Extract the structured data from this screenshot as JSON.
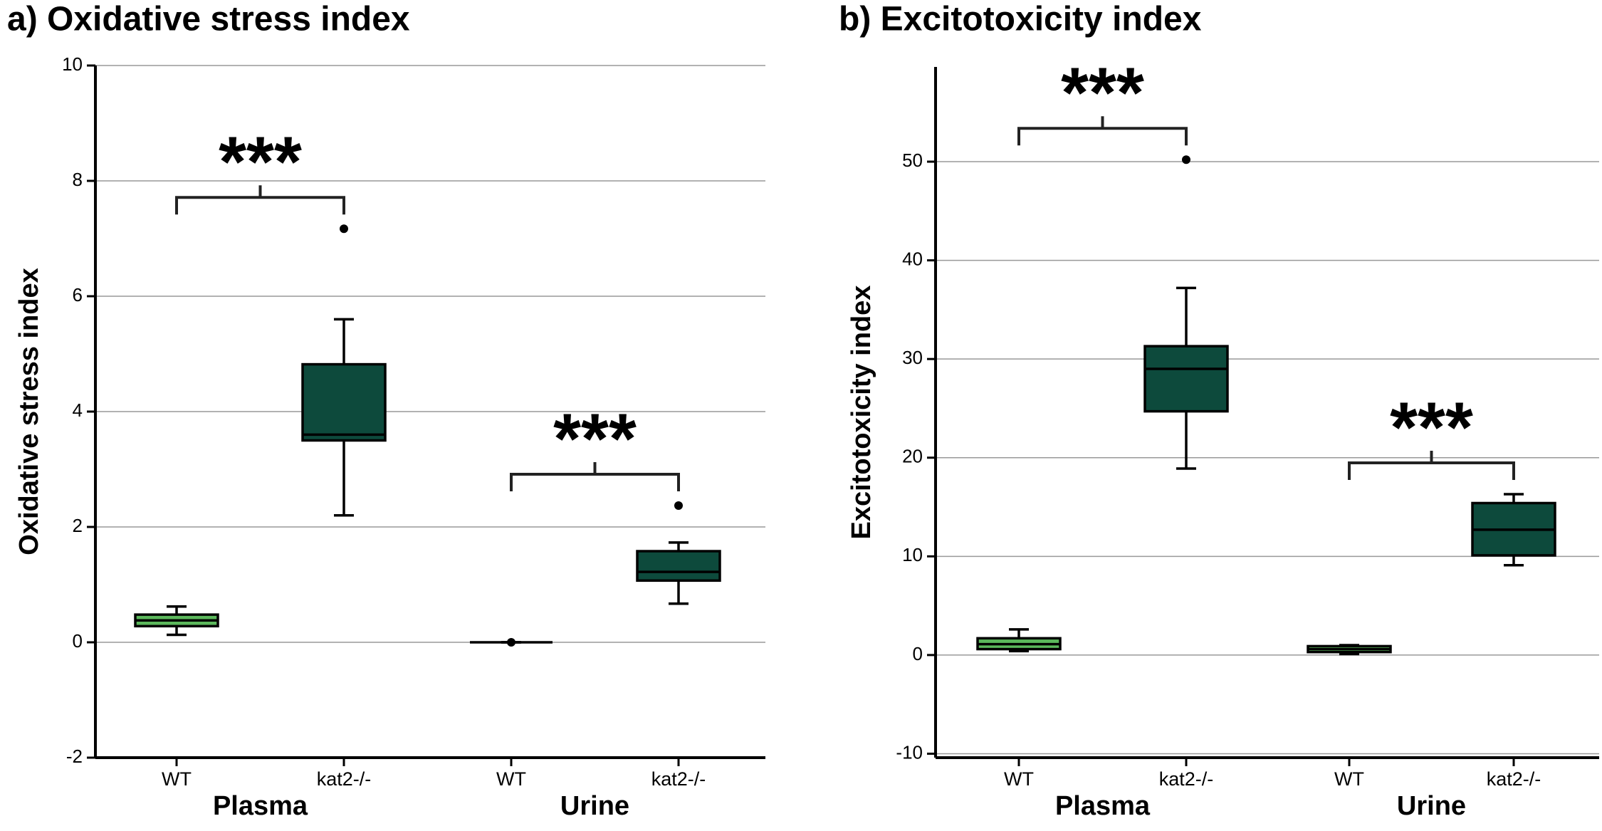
{
  "chart_data": [
    {
      "type": "box",
      "title": "a) Oxidative stress index",
      "y_label": "Oxidative stress index",
      "categories": [
        "WT",
        "kat2-/-",
        "WT",
        "kat2-/-"
      ],
      "groups": [
        "Plasma",
        "Urine"
      ],
      "ylim": [
        -2,
        10
      ],
      "yticks": [
        -2,
        0,
        2,
        4,
        6,
        8,
        10
      ],
      "grid": true,
      "colors": [
        "#5cb85c",
        "#0d4a3c",
        "#0d4a3c",
        "#0d4a3c"
      ],
      "boxes": [
        {
          "whisker_low": 0.13,
          "q1": 0.28,
          "median": 0.38,
          "q3": 0.48,
          "whisker_high": 0.62,
          "outliers": []
        },
        {
          "whisker_low": 2.2,
          "q1": 3.5,
          "median": 3.6,
          "q3": 4.82,
          "whisker_high": 5.6,
          "outliers": [
            7.17
          ]
        },
        {
          "whisker_low": 0,
          "q1": 0,
          "median": 0,
          "q3": 0,
          "whisker_high": 0,
          "outliers": [
            0
          ]
        },
        {
          "whisker_low": 0.67,
          "q1": 1.07,
          "median": 1.22,
          "q3": 1.58,
          "whisker_high": 1.73,
          "outliers": [
            2.37
          ]
        }
      ],
      "annotations": [
        "***",
        "***"
      ]
    },
    {
      "type": "box",
      "title": "b) Excitotoxicity index",
      "y_label": "Excitotoxicity index",
      "categories": [
        "WT",
        "kat2-/-",
        "WT",
        "kat2-/-"
      ],
      "groups": [
        "Plasma",
        "Urine"
      ],
      "ylim": [
        -10.4,
        59.6
      ],
      "yticks": [
        -10,
        0,
        10,
        20,
        30,
        40,
        50
      ],
      "grid": true,
      "colors": [
        "#5cb85c",
        "#0d4a3c",
        "#5cb85c",
        "#0d4a3c"
      ],
      "boxes": [
        {
          "whisker_low": 0.4,
          "q1": 0.6,
          "median": 1.1,
          "q3": 1.7,
          "whisker_high": 2.6,
          "outliers": []
        },
        {
          "whisker_low": 18.9,
          "q1": 24.7,
          "median": 29.0,
          "q3": 31.3,
          "whisker_high": 37.2,
          "outliers": [
            50.2
          ]
        },
        {
          "whisker_low": 0.1,
          "q1": 0.3,
          "median": 0.6,
          "q3": 0.9,
          "whisker_high": 1.0,
          "outliers": []
        },
        {
          "whisker_low": 9.1,
          "q1": 10.1,
          "median": 12.7,
          "q3": 15.4,
          "whisker_high": 16.3,
          "outliers": []
        }
      ],
      "annotations": [
        "***",
        "***"
      ]
    }
  ]
}
